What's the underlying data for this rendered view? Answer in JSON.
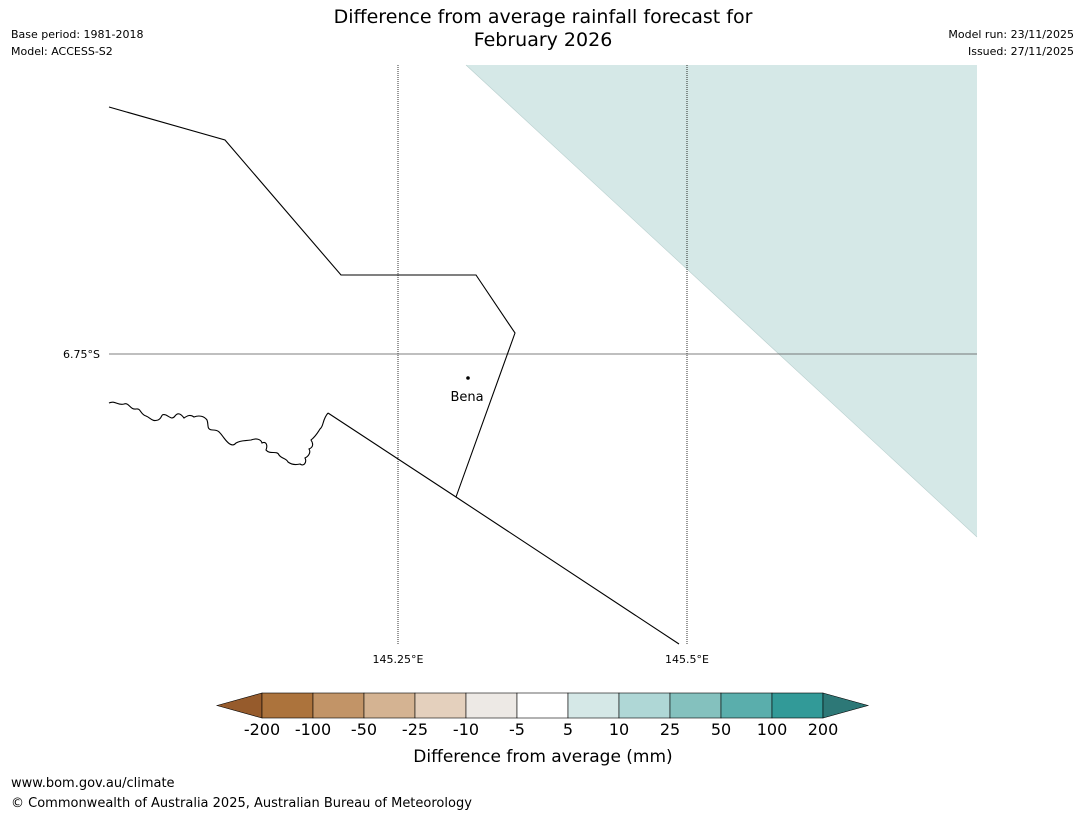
{
  "header": {
    "title_line1": "Difference from average rainfall forecast for",
    "title_line2": "February 2026",
    "base_period": "Base period: 1981-2018",
    "model": "Model: ACCESS-S2",
    "model_run": "Model run: 23/11/2025",
    "issued": "Issued: 27/11/2025"
  },
  "map": {
    "graticule": {
      "lat_label": "6.75°S",
      "lon_labels": [
        "145.25°E",
        "145.5°E"
      ]
    },
    "place": {
      "name": "Bena"
    },
    "forecast_category": "5 to 10"
  },
  "legend": {
    "title": "Difference from average (mm)",
    "tick_labels": [
      "-200",
      "-100",
      "-50",
      "-25",
      "-10",
      "-5",
      "5",
      "10",
      "25",
      "50",
      "100",
      "200"
    ],
    "bins": [
      {
        "label": "< -200",
        "color": "#965b2c"
      },
      {
        "label": "-200 to -100",
        "color": "#ac733c"
      },
      {
        "label": "-100 to -50",
        "color": "#c29467"
      },
      {
        "label": "-50 to -25",
        "color": "#d4b392"
      },
      {
        "label": "-25 to -10",
        "color": "#e4d0bd"
      },
      {
        "label": "-10 to -5",
        "color": "#ede9e5"
      },
      {
        "label": "-5 to 5",
        "color": "#ffffff"
      },
      {
        "label": "5 to 10",
        "color": "#d5e8e7"
      },
      {
        "label": "10 to 25",
        "color": "#afd7d6"
      },
      {
        "label": "25 to 50",
        "color": "#84c1be"
      },
      {
        "label": "50 to 100",
        "color": "#5aaeac"
      },
      {
        "label": "100 to 200",
        "color": "#329a98"
      },
      {
        "label": "> 200",
        "color": "#2d7877"
      }
    ]
  },
  "footer": {
    "website": "www.bom.gov.au/climate",
    "copyright": "© Commonwealth of Australia 2025, Australian Bureau of Meteorology"
  }
}
